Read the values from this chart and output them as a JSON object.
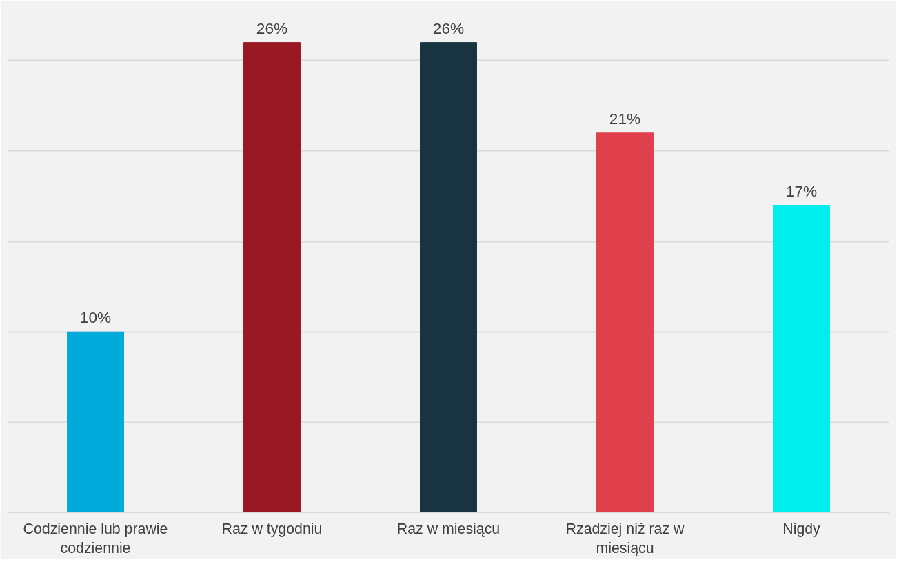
{
  "chart_data": {
    "type": "bar",
    "categories": [
      "Codziennie lub prawie codziennie",
      "Raz w tygodniu",
      "Raz w miesiącu",
      "Rzadziej niż raz w miesiącu",
      "Nigdy"
    ],
    "values": [
      10,
      26,
      26,
      21,
      17
    ],
    "value_labels": [
      "10%",
      "26%",
      "26%",
      "21%",
      "17%"
    ],
    "colors": [
      "#00aadb",
      "#981923",
      "#193441",
      "#e0404c",
      "#00eeee"
    ],
    "tick_labels": "x",
    "grid": "y"
  }
}
